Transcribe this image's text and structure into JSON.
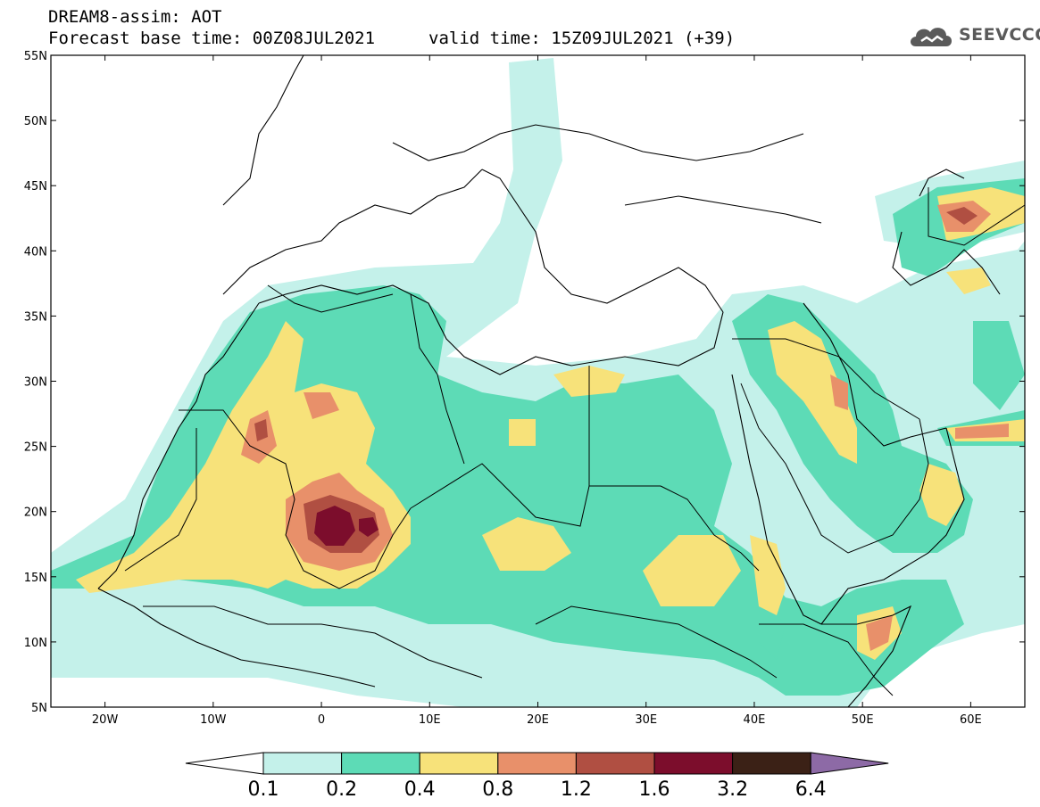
{
  "header": {
    "model_line": "DREAM8-assim: AOT",
    "base_time": "Forecast base time: 00Z08JUL2021",
    "valid_time": "valid time: 15Z09JUL2021 (+39)"
  },
  "logo": {
    "name": "SEEVCCC",
    "icon": "cloud-icon",
    "color": "#5a5a5a"
  },
  "map": {
    "lon_range": [
      -25,
      65
    ],
    "lat_range": [
      5,
      55
    ],
    "lat_labels": [
      {
        "value": 55,
        "label": "55N"
      },
      {
        "value": 50,
        "label": "50N"
      },
      {
        "value": 45,
        "label": "45N"
      },
      {
        "value": 40,
        "label": "40N"
      },
      {
        "value": 35,
        "label": "35N"
      },
      {
        "value": 30,
        "label": "30N"
      },
      {
        "value": 25,
        "label": "25N"
      },
      {
        "value": 20,
        "label": "20N"
      },
      {
        "value": 15,
        "label": "15N"
      },
      {
        "value": 10,
        "label": "10N"
      },
      {
        "value": 5,
        "label": "5N"
      }
    ],
    "lon_labels": [
      {
        "value": -20,
        "label": "20W"
      },
      {
        "value": -10,
        "label": "10W"
      },
      {
        "value": 0,
        "label": "0"
      },
      {
        "value": 10,
        "label": "10E"
      },
      {
        "value": 20,
        "label": "20E"
      },
      {
        "value": 30,
        "label": "30E"
      },
      {
        "value": 40,
        "label": "40E"
      },
      {
        "value": 50,
        "label": "50E"
      },
      {
        "value": 60,
        "label": "60E"
      }
    ]
  },
  "colorbar": {
    "labels": [
      "0.1",
      "0.2",
      "0.4",
      "0.8",
      "1.2",
      "1.6",
      "3.2",
      "6.4"
    ],
    "colors": [
      "#ffffff",
      "#c4f1ea",
      "#5ddbb6",
      "#f7e27a",
      "#e8906a",
      "#b04f42",
      "#7c0d2c",
      "#3b2116",
      "#8d6aa6"
    ]
  }
}
